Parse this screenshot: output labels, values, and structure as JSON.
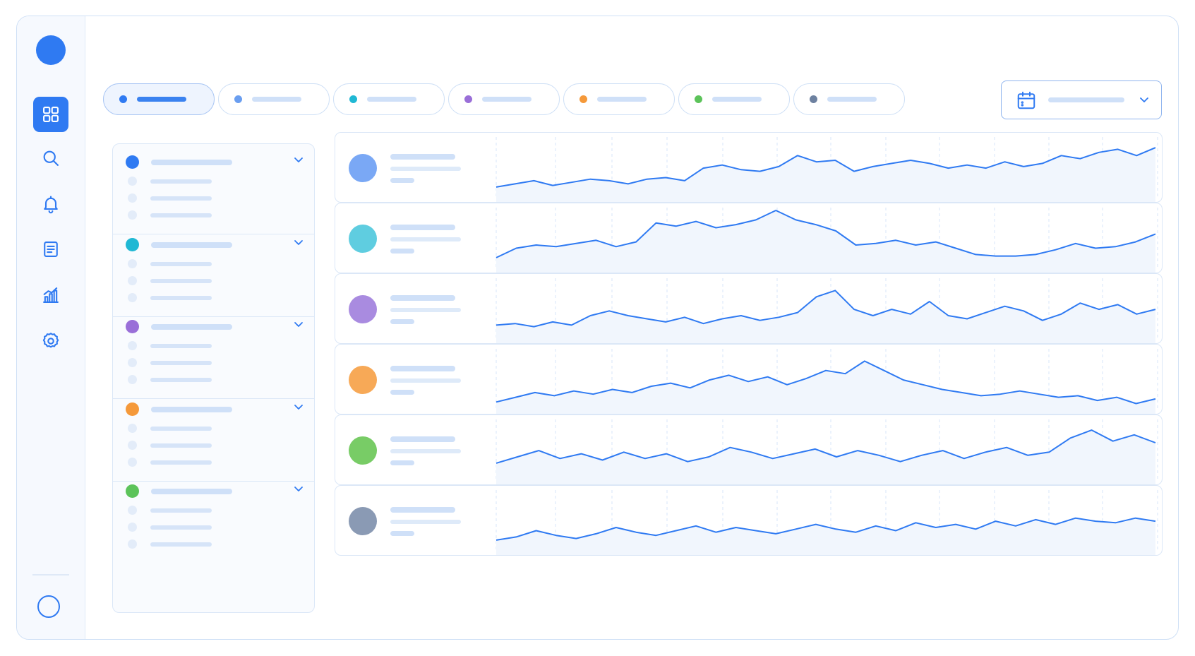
{
  "app": {
    "title": ""
  },
  "colors": {
    "accent": "#2f7af2",
    "line": "#2f7af2",
    "blue": "#3a7ef0",
    "cyan": "#20b8d4",
    "purple": "#9a6fd8",
    "orange": "#f5993a",
    "green": "#5cc35a",
    "slate": "#6d81a0"
  },
  "sidebar": {
    "items": [
      {
        "icon": "grid-icon",
        "active": true
      },
      {
        "icon": "search-icon",
        "active": false
      },
      {
        "icon": "bell-icon",
        "active": false
      },
      {
        "icon": "document-icon",
        "active": false
      },
      {
        "icon": "chart-icon",
        "active": false
      },
      {
        "icon": "gear-icon",
        "active": false
      }
    ]
  },
  "filters": {
    "chips": [
      {
        "color": "#2f7af2",
        "active": true
      },
      {
        "color": "#6a9ef0",
        "active": false
      },
      {
        "color": "#20b8d4",
        "active": false
      },
      {
        "color": "#9a6fd8",
        "active": false
      },
      {
        "color": "#f5993a",
        "active": false
      },
      {
        "color": "#5cc35a",
        "active": false
      },
      {
        "color": "#6d81a0",
        "active": false
      }
    ],
    "date_picker": {
      "icon": "calendar-icon"
    }
  },
  "groups": [
    {
      "color": "#2f7af2",
      "rows": 3
    },
    {
      "color": "#20b8d4",
      "rows": 3
    },
    {
      "color": "#9a6fd8",
      "rows": 3
    },
    {
      "color": "#f5993a",
      "rows": 3
    },
    {
      "color": "#5cc35a",
      "rows": 3
    }
  ],
  "series_cards": [
    {
      "avatar_color": "#7aa8f5",
      "values": [
        10,
        12,
        14,
        11,
        13,
        15,
        14,
        12,
        15,
        16,
        14,
        22,
        24,
        21,
        20,
        23,
        30,
        26,
        27,
        20,
        23,
        25,
        27,
        25,
        22,
        24,
        22,
        26,
        23,
        25,
        30,
        28,
        32,
        34,
        30,
        35
      ]
    },
    {
      "avatar_color": "#5fcde0",
      "values": [
        10,
        16,
        18,
        17,
        19,
        21,
        17,
        20,
        32,
        30,
        33,
        29,
        31,
        34,
        40,
        34,
        31,
        27,
        18,
        19,
        21,
        18,
        20,
        16,
        12,
        11,
        11,
        12,
        15,
        19,
        16,
        17,
        20,
        25
      ]
    },
    {
      "avatar_color": "#a98be0",
      "values": [
        12,
        13,
        11,
        14,
        12,
        18,
        21,
        18,
        16,
        14,
        17,
        13,
        16,
        18,
        15,
        17,
        20,
        30,
        34,
        22,
        18,
        22,
        19,
        27,
        18,
        16,
        20,
        24,
        21,
        15,
        19,
        26,
        22,
        25,
        19,
        22
      ]
    },
    {
      "avatar_color": "#f7a957",
      "values": [
        8,
        11,
        14,
        12,
        15,
        13,
        16,
        14,
        18,
        20,
        17,
        22,
        25,
        21,
        24,
        19,
        23,
        28,
        26,
        34,
        28,
        22,
        19,
        16,
        14,
        12,
        13,
        15,
        13,
        11,
        12,
        9,
        11,
        7,
        10
      ]
    },
    {
      "avatar_color": "#78cc66",
      "values": [
        14,
        18,
        22,
        17,
        20,
        16,
        21,
        17,
        20,
        15,
        18,
        24,
        21,
        17,
        20,
        23,
        18,
        22,
        19,
        15,
        19,
        22,
        17,
        21,
        24,
        19,
        21,
        30,
        35,
        28,
        32,
        27
      ]
    },
    {
      "avatar_color": "#8a9ab4",
      "values": [
        10,
        12,
        16,
        13,
        11,
        14,
        18,
        15,
        13,
        16,
        19,
        15,
        18,
        16,
        14,
        17,
        20,
        17,
        15,
        19,
        16,
        21,
        18,
        20,
        17,
        22,
        19,
        23,
        20,
        24,
        22,
        21,
        24,
        22
      ]
    }
  ]
}
